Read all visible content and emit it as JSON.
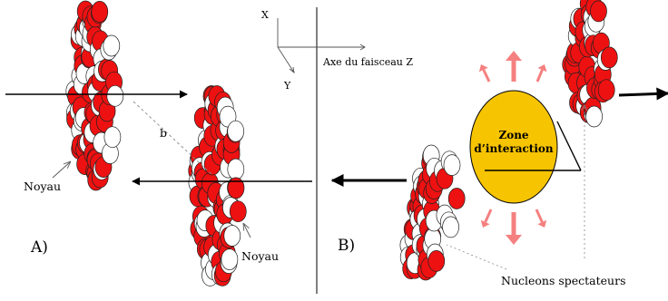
{
  "colors": {
    "nucleon_red": "#ee1111",
    "nucleon_white": "#ffffff",
    "zone_fill": "#f6c400",
    "particle_arrow": "#f58080",
    "ink": "#000000"
  },
  "axes": {
    "x_label": "X",
    "y_label": "Y",
    "z_label": "Axe du faisceau Z"
  },
  "panel_a": {
    "label": "A)",
    "impact_parameter": "b",
    "nucleus_label_1": "Noyau",
    "nucleus_label_2": "Noyau"
  },
  "panel_b": {
    "label": "B)",
    "zone_line1": "Zone",
    "zone_line2": "d’interaction",
    "spectators_label": "Nucleons spectateurs"
  }
}
